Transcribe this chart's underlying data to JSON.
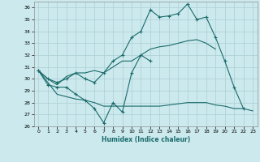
{
  "title": "",
  "xlabel": "Humidex (Indice chaleur)",
  "ylabel": "",
  "background_color": "#cce9ed",
  "grid_color": "#aacfd4",
  "line_color": "#1a6b6b",
  "xlim": [
    -0.5,
    23.5
  ],
  "ylim": [
    26,
    36.5
  ],
  "yticks": [
    26,
    27,
    28,
    29,
    30,
    31,
    32,
    33,
    34,
    35,
    36
  ],
  "xticks": [
    0,
    1,
    2,
    3,
    4,
    5,
    6,
    7,
    8,
    9,
    10,
    11,
    12,
    13,
    14,
    15,
    16,
    17,
    18,
    19,
    20,
    21,
    22,
    23
  ],
  "series": [
    {
      "x": [
        0,
        1,
        2,
        3,
        4,
        5,
        6,
        7,
        8,
        9,
        10,
        11,
        12,
        13,
        14,
        15,
        16,
        17,
        18,
        19,
        20,
        21,
        22
      ],
      "y": [
        30.7,
        30.0,
        29.7,
        30.0,
        30.5,
        30.0,
        29.7,
        30.5,
        31.5,
        32.0,
        33.5,
        34.0,
        35.8,
        35.2,
        35.3,
        35.5,
        36.3,
        35.0,
        35.2,
        33.5,
        31.5,
        29.3,
        27.5
      ],
      "style": "-",
      "marker": "+"
    },
    {
      "x": [
        0,
        1,
        2,
        3,
        4,
        5,
        6,
        7,
        8,
        9,
        10,
        11,
        12
      ],
      "y": [
        30.7,
        29.5,
        29.3,
        29.3,
        28.7,
        28.2,
        27.5,
        26.3,
        28.0,
        27.2,
        30.5,
        32.0,
        31.5
      ],
      "style": "-",
      "marker": "+"
    },
    {
      "x": [
        0,
        1,
        2,
        3,
        4,
        5,
        6,
        7,
        8,
        9,
        10,
        11,
        12,
        13,
        14,
        15,
        16,
        17,
        18,
        19
      ],
      "y": [
        30.7,
        30.0,
        29.5,
        30.2,
        30.5,
        30.5,
        30.7,
        30.5,
        31.0,
        31.5,
        31.5,
        32.0,
        32.5,
        32.7,
        32.8,
        33.0,
        33.2,
        33.3,
        33.0,
        32.5
      ],
      "style": "-",
      "marker": null
    },
    {
      "x": [
        0,
        1,
        2,
        3,
        4,
        5,
        6,
        7,
        8,
        9,
        10,
        11,
        12,
        13,
        14,
        15,
        16,
        17,
        18,
        19,
        20,
        21,
        22,
        23
      ],
      "y": [
        30.7,
        29.7,
        28.7,
        28.5,
        28.3,
        28.2,
        28.0,
        27.7,
        27.7,
        27.7,
        27.7,
        27.7,
        27.7,
        27.7,
        27.8,
        27.9,
        28.0,
        28.0,
        28.0,
        27.8,
        27.7,
        27.5,
        27.5,
        27.3
      ],
      "style": "-",
      "marker": null
    }
  ]
}
